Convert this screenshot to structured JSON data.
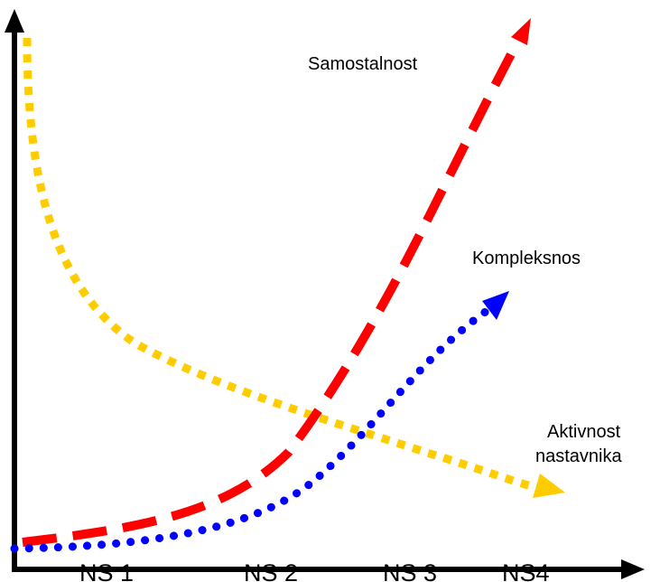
{
  "colors": {
    "axis": "#000000",
    "samostalnost": "#ff0000",
    "kompleksnost": "#0000ff",
    "aktivnost": "#ffcc00",
    "text": "#000000"
  },
  "curves": {
    "samostalnost": {
      "label": "Samostalnost",
      "style": "dashed"
    },
    "kompleksnost": {
      "label": "Kompleksnos",
      "style": "dotted-round"
    },
    "aktivnost": {
      "label_line1": "Aktivnost",
      "label_line2": "nastavnika",
      "style": "dotted-square"
    }
  },
  "x_axis": {
    "ticks": [
      "NS 1",
      "NS 2",
      "NS 3",
      "NS4"
    ]
  }
}
